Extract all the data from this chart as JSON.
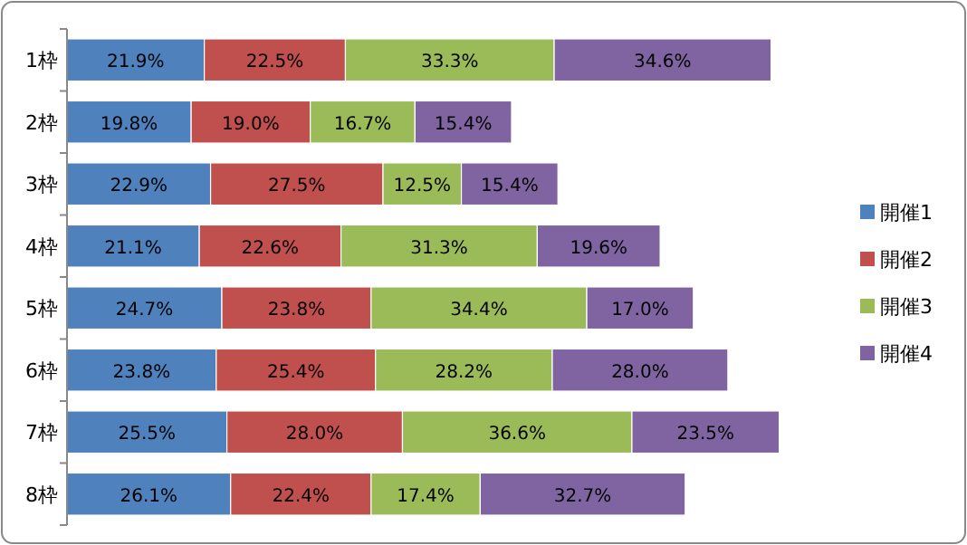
{
  "chart_data": {
    "type": "bar",
    "orientation": "horizontal",
    "stacked": true,
    "legend": "right",
    "grid": false,
    "categories": [
      "1枠",
      "2枠",
      "3枠",
      "4枠",
      "5枠",
      "6枠",
      "7枠",
      "8枠"
    ],
    "series": [
      {
        "name": "開催1",
        "color": "#4f81bd",
        "values": [
          21.9,
          19.8,
          22.9,
          21.1,
          24.7,
          23.8,
          25.5,
          26.1
        ],
        "value_labels": [
          "21.9%",
          "19.8%",
          "22.9%",
          "21.1%",
          "24.7%",
          "23.8%",
          "25.5%",
          "26.1%"
        ]
      },
      {
        "name": "開催2",
        "color": "#c0504d",
        "values": [
          22.5,
          19.0,
          27.5,
          22.6,
          23.8,
          25.4,
          28.0,
          22.4
        ],
        "value_labels": [
          "22.5%",
          "19.0%",
          "27.5%",
          "22.6%",
          "23.8%",
          "25.4%",
          "28.0%",
          "22.4%"
        ]
      },
      {
        "name": "開催3",
        "color": "#9bbb59",
        "values": [
          33.3,
          16.7,
          12.5,
          31.3,
          34.4,
          28.2,
          36.6,
          17.4
        ],
        "value_labels": [
          "33.3%",
          "16.7%",
          "12.5%",
          "31.3%",
          "34.4%",
          "28.2%",
          "36.6%",
          "17.4%"
        ]
      },
      {
        "name": "開催4",
        "color": "#8064a2",
        "values": [
          34.6,
          15.4,
          15.4,
          19.6,
          17.0,
          28.0,
          23.5,
          32.7
        ],
        "value_labels": [
          "34.6%",
          "15.4%",
          "15.4%",
          "19.6%",
          "17.0%",
          "28.0%",
          "23.5%",
          "32.7%"
        ]
      }
    ]
  }
}
